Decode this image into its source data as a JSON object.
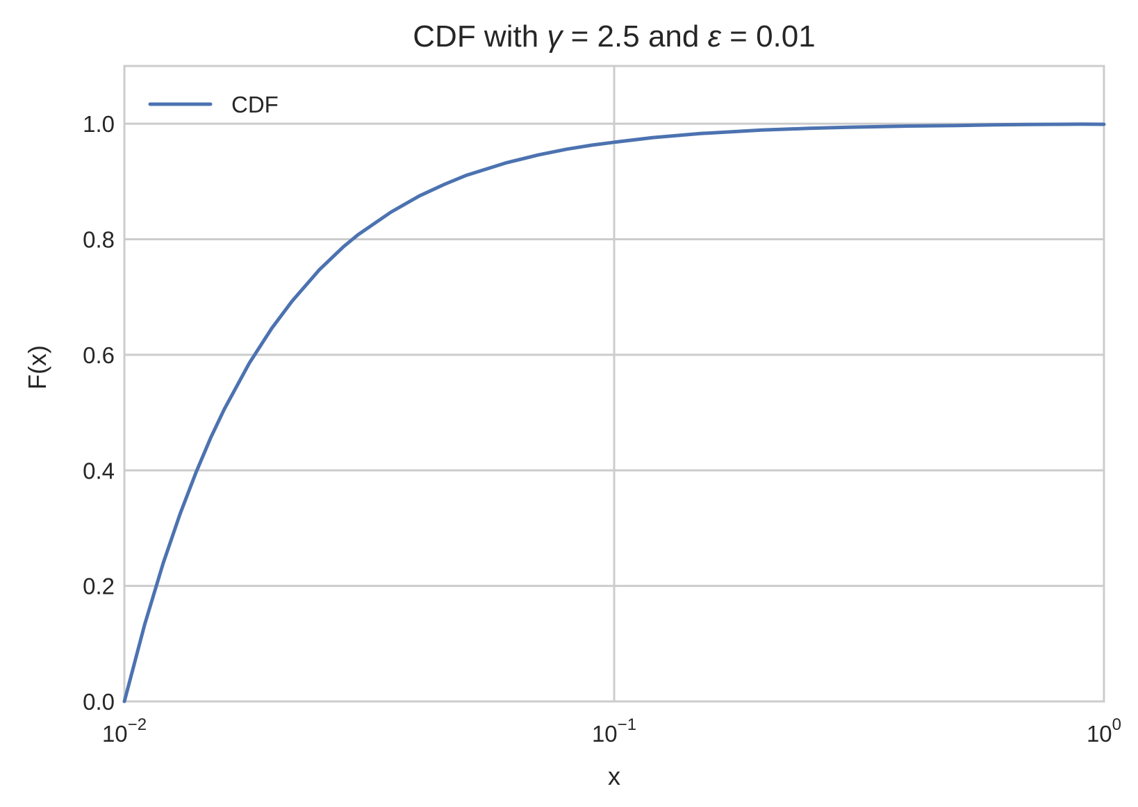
{
  "chart_data": {
    "type": "line",
    "title": "CDF with γ = 2.5 and ε = 0.01",
    "title_parts": [
      "CDF with ",
      "γ",
      " = 2.5 and ",
      "ε",
      " = 0.01"
    ],
    "xlabel": "x",
    "ylabel": "F(x)",
    "xscale": "log",
    "xlim": [
      0.01,
      1
    ],
    "ylim": [
      0,
      1.1
    ],
    "grid": true,
    "legend_position": "upper-left",
    "x_ticks": [
      {
        "value": 0.01,
        "base": "10",
        "exponent": "−2"
      },
      {
        "value": 0.1,
        "base": "10",
        "exponent": "−1"
      },
      {
        "value": 1,
        "base": "10",
        "exponent": "0"
      }
    ],
    "y_ticks": [
      {
        "value": 0.0,
        "label": "0.0"
      },
      {
        "value": 0.2,
        "label": "0.2"
      },
      {
        "value": 0.4,
        "label": "0.4"
      },
      {
        "value": 0.6,
        "label": "0.6"
      },
      {
        "value": 0.8,
        "label": "0.8"
      },
      {
        "value": 1.0,
        "label": "1.0"
      }
    ],
    "series": [
      {
        "name": "CDF",
        "color": "#4c72b0",
        "x": [
          0.01,
          0.011,
          0.012,
          0.013,
          0.014,
          0.015,
          0.016,
          0.018,
          0.02,
          0.022,
          0.025,
          0.028,
          0.03,
          0.035,
          0.04,
          0.045,
          0.05,
          0.06,
          0.07,
          0.08,
          0.09,
          0.1,
          0.12,
          0.15,
          0.2,
          0.25,
          0.3,
          0.4,
          0.5,
          0.6,
          0.7,
          0.8,
          0.9,
          1.0
        ],
        "y": [
          0.0,
          0.133,
          0.239,
          0.325,
          0.396,
          0.456,
          0.506,
          0.586,
          0.646,
          0.693,
          0.747,
          0.787,
          0.808,
          0.847,
          0.875,
          0.895,
          0.911,
          0.932,
          0.946,
          0.956,
          0.963,
          0.968,
          0.976,
          0.983,
          0.989,
          0.992,
          0.994,
          0.996,
          0.997,
          0.998,
          0.9987,
          0.999,
          0.9992,
          0.999
        ]
      }
    ]
  }
}
